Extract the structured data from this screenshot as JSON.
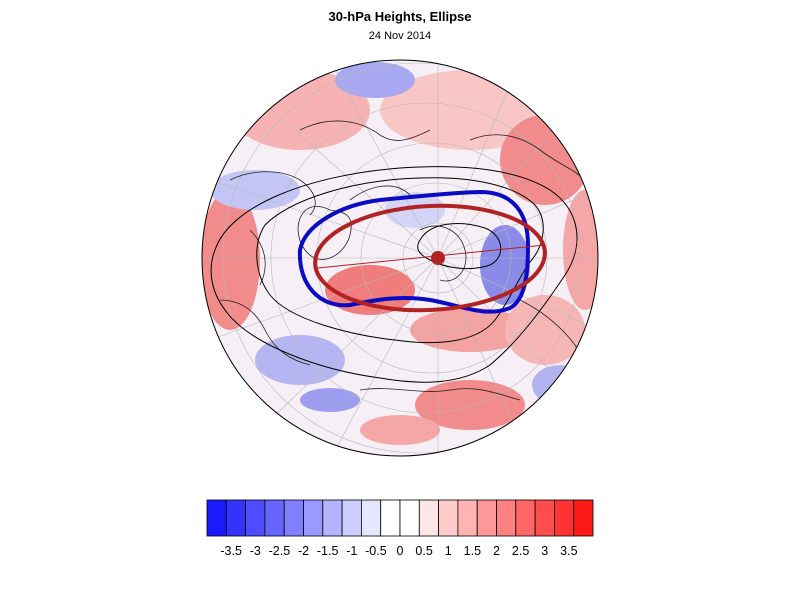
{
  "title": "30-hPa Heights, Ellipse",
  "subtitle": "24 Nov 2014",
  "colorbar": {
    "colors": [
      "#1a1aff",
      "#3333ff",
      "#4d4dff",
      "#6666ff",
      "#8080ff",
      "#9999ff",
      "#b3b3ff",
      "#ccccff",
      "#e6e6ff",
      "#ffffff",
      "#ffffff",
      "#ffe6e6",
      "#ffcccc",
      "#ffb3b3",
      "#ff9999",
      "#ff8080",
      "#ff6666",
      "#ff4d4d",
      "#ff3333",
      "#ff1a1a"
    ],
    "ticks": [
      "-3.5",
      "-3",
      "-2.5",
      "-2",
      "-1.5",
      "-1",
      "-0.5",
      "0",
      "0.5",
      "1",
      "1.5",
      "2",
      "2.5",
      "3",
      "3.5"
    ],
    "min": -4,
    "max": 4
  },
  "map": {
    "projection": "north polar stereographic",
    "field": "30-hPa height anomaly",
    "ellipse_color": "#b22222",
    "vortex_contour_color": "#0000cc",
    "height_contour_color": "#000000"
  }
}
